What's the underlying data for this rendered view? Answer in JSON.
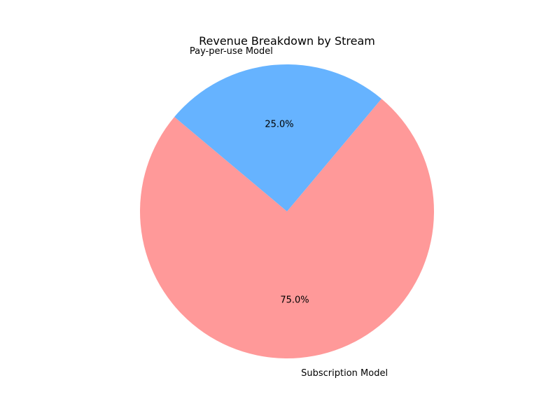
{
  "chart_data": {
    "type": "pie",
    "title": "Revenue Breakdown by Stream",
    "categories": [
      "Subscription Model",
      "Pay-per-use Model"
    ],
    "values": [
      75.0,
      25.0
    ],
    "percent_labels": [
      "75.0%",
      "25.0%"
    ],
    "colors": [
      "#ff9999",
      "#66b3ff"
    ],
    "start_angle_deg": 140,
    "direction": "counterclockwise",
    "legend": "none"
  }
}
